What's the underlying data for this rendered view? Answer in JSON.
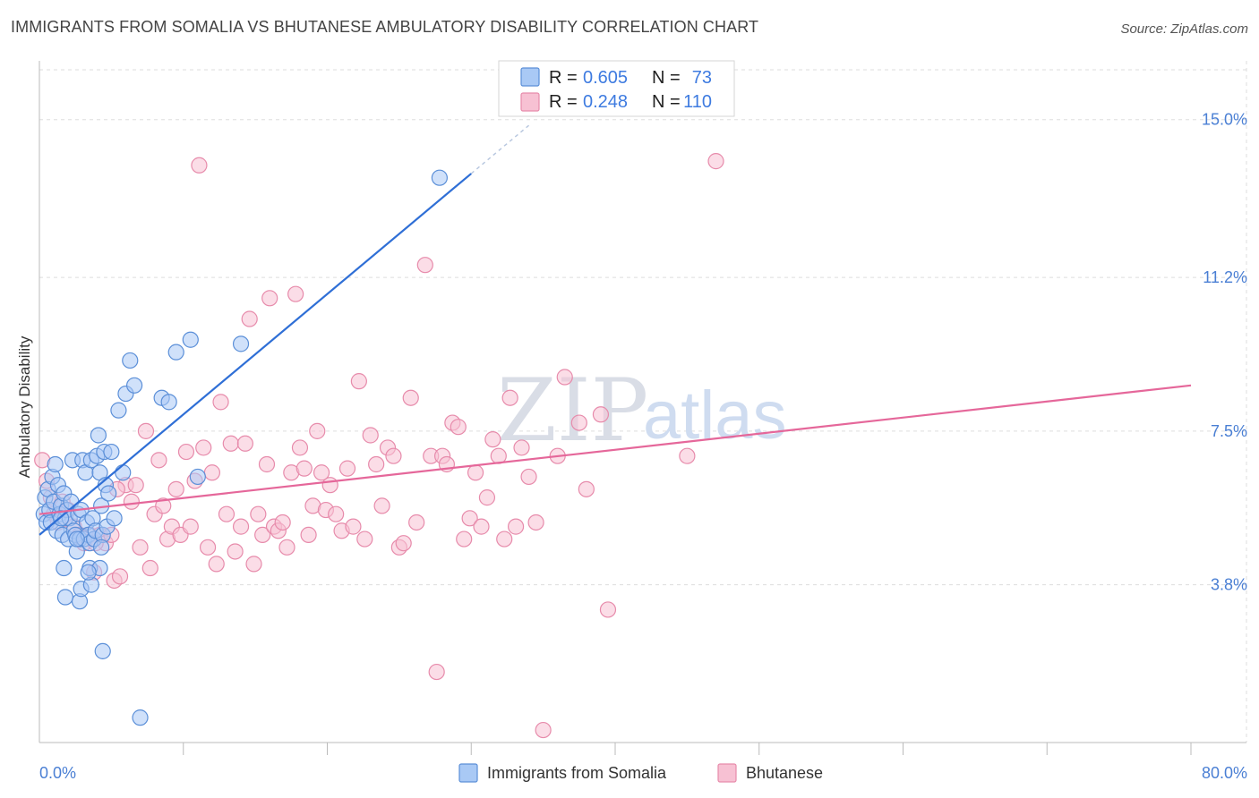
{
  "title": "IMMIGRANTS FROM SOMALIA VS BHUTANESE AMBULATORY DISABILITY CORRELATION CHART",
  "source": "Source: ZipAtlas.com",
  "watermark": {
    "zip": "ZIP",
    "atlas": "atlas"
  },
  "colors": {
    "blue_fill": "#a9c9f5",
    "blue_stroke": "#5b8fd8",
    "blue_line": "#2f6fd6",
    "pink_fill": "#f7c1d3",
    "pink_stroke": "#e78bab",
    "pink_line": "#e5679a",
    "tick": "#4a7fd4",
    "grid": "#dddddd"
  },
  "legend": {
    "r_label": "R =",
    "n_label": "N =",
    "entries": [
      {
        "r": "0.605",
        "n": "73"
      },
      {
        "r": "0.248",
        "n": "110"
      }
    ]
  },
  "chart_data": {
    "type": "scatter",
    "title": "IMMIGRANTS FROM SOMALIA VS BHUTANESE AMBULATORY DISABILITY CORRELATION CHART",
    "xlabel": "",
    "ylabel": "Ambulatory Disability",
    "xlim": [
      0,
      80
    ],
    "ylim": [
      0,
      16.2
    ],
    "x_tick_labels": [
      {
        "value": 0,
        "label": "0.0%"
      },
      {
        "value": 80,
        "label": "80.0%"
      }
    ],
    "y_ticks": [
      {
        "value": 3.8,
        "label": "3.8%"
      },
      {
        "value": 7.5,
        "label": "7.5%"
      },
      {
        "value": 11.2,
        "label": "11.2%"
      },
      {
        "value": 15.0,
        "label": "15.0%"
      }
    ],
    "series": [
      {
        "name": "Immigrants from Somalia",
        "color": "#a9c9f5",
        "trend": {
          "x0": 0,
          "y0": 5.0,
          "x1": 30,
          "y1": 13.7
        },
        "points": [
          [
            0.3,
            5.5
          ],
          [
            0.4,
            5.9
          ],
          [
            0.5,
            5.3
          ],
          [
            0.6,
            6.1
          ],
          [
            0.7,
            5.6
          ],
          [
            0.8,
            5.3
          ],
          [
            0.9,
            6.4
          ],
          [
            1.0,
            5.8
          ],
          [
            1.1,
            6.7
          ],
          [
            1.2,
            5.1
          ],
          [
            1.3,
            6.2
          ],
          [
            1.4,
            5.5
          ],
          [
            1.5,
            5.7
          ],
          [
            1.6,
            5.0
          ],
          [
            1.7,
            6.0
          ],
          [
            1.8,
            5.4
          ],
          [
            1.9,
            5.6
          ],
          [
            2.0,
            4.9
          ],
          [
            2.1,
            5.4
          ],
          [
            2.2,
            5.8
          ],
          [
            2.3,
            6.8
          ],
          [
            2.4,
            5.1
          ],
          [
            2.5,
            5.0
          ],
          [
            2.6,
            4.6
          ],
          [
            2.7,
            5.5
          ],
          [
            2.8,
            4.9
          ],
          [
            2.9,
            5.6
          ],
          [
            3.0,
            6.8
          ],
          [
            3.1,
            4.9
          ],
          [
            3.2,
            6.5
          ],
          [
            3.3,
            5.3
          ],
          [
            3.4,
            5.0
          ],
          [
            3.5,
            4.8
          ],
          [
            3.6,
            6.8
          ],
          [
            3.7,
            5.4
          ],
          [
            3.8,
            4.9
          ],
          [
            3.9,
            5.1
          ],
          [
            4.0,
            6.9
          ],
          [
            4.1,
            7.4
          ],
          [
            4.2,
            6.5
          ],
          [
            4.3,
            5.7
          ],
          [
            4.4,
            5.0
          ],
          [
            4.5,
            7.0
          ],
          [
            4.6,
            6.2
          ],
          [
            4.7,
            5.2
          ],
          [
            4.8,
            6.0
          ],
          [
            5.0,
            7.0
          ],
          [
            5.2,
            5.4
          ],
          [
            5.5,
            8.0
          ],
          [
            5.8,
            6.5
          ],
          [
            6.0,
            8.4
          ],
          [
            6.3,
            9.2
          ],
          [
            6.6,
            8.6
          ],
          [
            7.0,
            0.6
          ],
          [
            8.5,
            8.3
          ],
          [
            9.0,
            8.2
          ],
          [
            9.5,
            9.4
          ],
          [
            10.5,
            9.7
          ],
          [
            11.0,
            6.4
          ],
          [
            14.0,
            9.6
          ],
          [
            27.8,
            13.6
          ],
          [
            1.7,
            4.2
          ],
          [
            1.8,
            3.5
          ],
          [
            2.8,
            3.4
          ],
          [
            2.9,
            3.7
          ],
          [
            3.5,
            4.2
          ],
          [
            3.6,
            3.8
          ],
          [
            4.2,
            4.2
          ],
          [
            4.3,
            4.7
          ],
          [
            4.4,
            2.2
          ],
          [
            3.4,
            4.1
          ],
          [
            2.6,
            4.9
          ],
          [
            1.5,
            5.4
          ]
        ]
      },
      {
        "name": "Bhutanese",
        "color": "#f7c1d3",
        "trend": {
          "x0": 0,
          "y0": 5.5,
          "x1": 80,
          "y1": 8.6
        },
        "points": [
          [
            0.2,
            6.8
          ],
          [
            0.5,
            6.3
          ],
          [
            0.8,
            5.9
          ],
          [
            1.0,
            5.5
          ],
          [
            1.3,
            5.3
          ],
          [
            1.6,
            5.8
          ],
          [
            2.0,
            5.6
          ],
          [
            2.4,
            5.2
          ],
          [
            2.8,
            5.0
          ],
          [
            3.1,
            4.8
          ],
          [
            3.5,
            5.0
          ],
          [
            3.8,
            4.1
          ],
          [
            4.2,
            5.0
          ],
          [
            4.6,
            4.8
          ],
          [
            5.0,
            5.0
          ],
          [
            5.2,
            3.9
          ],
          [
            5.6,
            4.0
          ],
          [
            6.0,
            6.2
          ],
          [
            6.4,
            5.8
          ],
          [
            6.7,
            6.2
          ],
          [
            7.0,
            4.7
          ],
          [
            7.4,
            7.5
          ],
          [
            7.7,
            4.2
          ],
          [
            8.0,
            5.5
          ],
          [
            8.3,
            6.8
          ],
          [
            8.6,
            5.7
          ],
          [
            8.9,
            4.9
          ],
          [
            9.2,
            5.2
          ],
          [
            9.5,
            6.1
          ],
          [
            9.8,
            5.0
          ],
          [
            10.2,
            7.0
          ],
          [
            10.5,
            5.2
          ],
          [
            10.8,
            6.3
          ],
          [
            11.1,
            13.9
          ],
          [
            11.4,
            7.1
          ],
          [
            11.7,
            4.7
          ],
          [
            12.0,
            6.5
          ],
          [
            12.3,
            4.3
          ],
          [
            12.6,
            8.2
          ],
          [
            13.0,
            5.5
          ],
          [
            13.3,
            7.2
          ],
          [
            13.6,
            4.6
          ],
          [
            14.0,
            5.2
          ],
          [
            14.3,
            7.2
          ],
          [
            14.6,
            10.2
          ],
          [
            14.9,
            4.3
          ],
          [
            15.2,
            5.5
          ],
          [
            15.5,
            5.0
          ],
          [
            15.8,
            6.7
          ],
          [
            16.0,
            10.7
          ],
          [
            16.3,
            5.2
          ],
          [
            16.6,
            5.1
          ],
          [
            16.9,
            5.3
          ],
          [
            17.2,
            4.7
          ],
          [
            17.5,
            6.5
          ],
          [
            17.8,
            10.8
          ],
          [
            18.1,
            7.1
          ],
          [
            18.4,
            6.6
          ],
          [
            18.7,
            5.0
          ],
          [
            19.0,
            5.7
          ],
          [
            19.3,
            7.5
          ],
          [
            19.6,
            6.5
          ],
          [
            19.9,
            5.6
          ],
          [
            20.2,
            6.2
          ],
          [
            20.6,
            5.5
          ],
          [
            21.0,
            5.1
          ],
          [
            21.4,
            6.6
          ],
          [
            21.8,
            5.2
          ],
          [
            22.2,
            8.7
          ],
          [
            22.6,
            4.9
          ],
          [
            23.0,
            7.4
          ],
          [
            23.4,
            6.7
          ],
          [
            23.8,
            5.7
          ],
          [
            24.2,
            7.1
          ],
          [
            24.6,
            6.9
          ],
          [
            25.0,
            4.7
          ],
          [
            25.3,
            4.8
          ],
          [
            25.8,
            8.3
          ],
          [
            26.2,
            5.3
          ],
          [
            26.8,
            11.5
          ],
          [
            27.2,
            6.9
          ],
          [
            27.6,
            1.7
          ],
          [
            28.0,
            6.9
          ],
          [
            28.3,
            6.7
          ],
          [
            28.7,
            7.7
          ],
          [
            29.1,
            7.6
          ],
          [
            29.5,
            4.9
          ],
          [
            29.9,
            5.4
          ],
          [
            30.3,
            6.5
          ],
          [
            30.7,
            5.2
          ],
          [
            31.1,
            5.9
          ],
          [
            31.5,
            7.3
          ],
          [
            31.9,
            6.9
          ],
          [
            32.3,
            4.9
          ],
          [
            32.7,
            8.3
          ],
          [
            33.1,
            5.2
          ],
          [
            33.5,
            7.1
          ],
          [
            34.0,
            6.4
          ],
          [
            34.5,
            5.3
          ],
          [
            35.0,
            0.3
          ],
          [
            36.0,
            6.9
          ],
          [
            36.5,
            8.8
          ],
          [
            37.5,
            7.7
          ],
          [
            38.0,
            6.1
          ],
          [
            39.0,
            7.9
          ],
          [
            39.5,
            3.2
          ],
          [
            45.0,
            6.9
          ],
          [
            47.0,
            14.0
          ],
          [
            3.9,
            4.8
          ],
          [
            5.4,
            6.1
          ]
        ]
      }
    ]
  },
  "bottom_legend": [
    "Immigrants from Somalia",
    "Bhutanese"
  ]
}
